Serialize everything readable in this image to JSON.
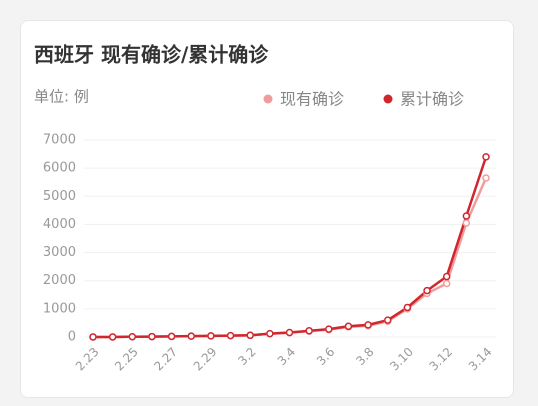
{
  "chart_data": {
    "type": "line",
    "title": "西班牙 现有确诊/累计确诊",
    "subtitle": "单位: 例",
    "categories": [
      "2.23",
      null,
      "2.25",
      null,
      "2.27",
      null,
      "2.29",
      null,
      "3.2",
      null,
      "3.4",
      null,
      "3.6",
      null,
      "3.8",
      null,
      "3.10",
      null,
      "3.12",
      null,
      "3.14"
    ],
    "series": [
      {
        "name": "现有确诊",
        "color": "#f09c9c",
        "values": [
          2,
          2,
          10,
          15,
          20,
          30,
          40,
          50,
          60,
          115,
          150,
          210,
          260,
          360,
          400,
          560,
          1000,
          1550,
          1900,
          4050,
          5650
        ]
      },
      {
        "name": "累计确诊",
        "color": "#d0262e",
        "values": [
          2,
          2,
          10,
          15,
          20,
          30,
          40,
          50,
          60,
          120,
          160,
          220,
          280,
          380,
          430,
          600,
          1050,
          1650,
          2150,
          4300,
          6400
        ]
      }
    ],
    "ylim": [
      0,
      7000
    ],
    "yticks": [
      0,
      1000,
      2000,
      3000,
      4000,
      5000,
      6000,
      7000
    ],
    "grid": true,
    "legend": "top-right"
  }
}
